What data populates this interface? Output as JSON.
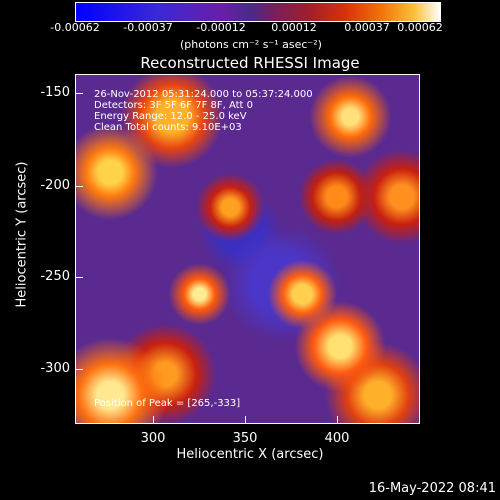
{
  "colorbar": {
    "ticks": [
      "-0.00062",
      "-0.00037",
      "-0.00012",
      "0.00012",
      "0.00037",
      "0.00062"
    ],
    "units": "(photons cm⁻² s⁻¹ asec⁻²)"
  },
  "plot": {
    "title": "Reconstructed RHESSI Image",
    "annotations": [
      "26-Nov-2012 05:31:24.000 to 05:37:24.000",
      "Detectors: 3F 5F 6F 7F 8F, Att 0",
      "Energy Range: 12.0 - 25.0 keV",
      "Clean    Total counts: 9.10E+03"
    ],
    "peak": "Position of Peak = [265,-333]",
    "xlabel": "Heliocentric X (arcsec)",
    "ylabel": "Heliocentric Y (arcsec)",
    "xticks": [
      "300",
      "350",
      "400"
    ],
    "yticks": [
      "-150",
      "-200",
      "-250",
      "-300"
    ]
  },
  "timestamp": "16-May-2022 08:41"
}
